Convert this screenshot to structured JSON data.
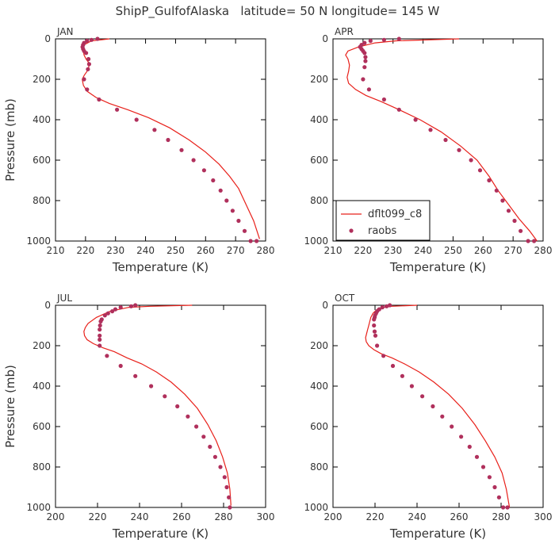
{
  "title": "ShipP_GulfofAlaska   latitude= 50 N longitude= 145 W",
  "colors": {
    "model": "#e8201a",
    "obs": "#b0305c"
  },
  "legend": {
    "model_label": "dflt099_c8",
    "obs_label": "raobs",
    "panel": "APR"
  },
  "chart_data": [
    {
      "type": "line",
      "panel": "JAN",
      "title": "JAN",
      "xlabel": "Temperature (K)",
      "ylabel": "Pressure (mb)",
      "xlim": [
        210,
        280
      ],
      "ylim": [
        1000,
        0
      ],
      "xticks": [
        210,
        220,
        230,
        240,
        250,
        260,
        270,
        280
      ],
      "yticks": [
        0,
        200,
        400,
        600,
        800,
        1000
      ],
      "series": [
        {
          "name": "dflt099_c8",
          "kind": "line",
          "x": [
            228.0,
            222.0,
            219.5,
            219.2,
            219.5,
            220.2,
            221.2,
            221.0,
            219.6,
            218.9,
            219.3,
            220.6,
            223.5,
            228.0,
            234.0,
            241.0,
            248.0,
            254.5,
            260.0,
            264.5,
            268.0,
            271.0,
            273.5,
            276.0,
            278.0
          ],
          "y": [
            0,
            10,
            30,
            50,
            80,
            100,
            120,
            150,
            180,
            200,
            230,
            260,
            290,
            320,
            350,
            390,
            440,
            500,
            560,
            620,
            680,
            740,
            820,
            900,
            990
          ]
        },
        {
          "name": "raobs",
          "kind": "scatter",
          "x": [
            224.0,
            222.0,
            220.5,
            219.5,
            219.2,
            219.0,
            219.2,
            219.5,
            220.2,
            221.0,
            221.2,
            220.8,
            219.5,
            220.5,
            224.5,
            230.5,
            237.0,
            243.0,
            247.5,
            252.0,
            256.0,
            259.5,
            262.5,
            265.0,
            267.0,
            269.0,
            271.0,
            273.0,
            275.0,
            277.0
          ],
          "y": [
            0,
            5,
            10,
            20,
            30,
            40,
            50,
            60,
            70,
            100,
            125,
            150,
            200,
            250,
            300,
            350,
            400,
            450,
            500,
            550,
            600,
            650,
            700,
            750,
            800,
            850,
            900,
            950,
            1000,
            1000
          ]
        }
      ]
    },
    {
      "type": "line",
      "panel": "APR",
      "title": "APR",
      "xlabel": "Temperature (K)",
      "ylabel": "",
      "xlim": [
        210,
        280
      ],
      "ylim": [
        1000,
        0
      ],
      "xticks": [
        210,
        220,
        230,
        240,
        250,
        260,
        270,
        280
      ],
      "yticks": [
        0,
        200,
        400,
        600,
        800,
        1000
      ],
      "series": [
        {
          "name": "dflt099_c8",
          "kind": "line",
          "x": [
            252.0,
            231.0,
            224.0,
            218.5,
            215.0,
            214.2,
            215.0,
            215.5,
            215.2,
            214.7,
            215.2,
            217.5,
            221.0,
            226.0,
            232.0,
            239.0,
            246.0,
            252.5,
            258.0,
            262.0,
            265.0,
            268.5,
            272.0,
            275.5,
            278.0
          ],
          "y": [
            0,
            10,
            20,
            40,
            60,
            80,
            100,
            130,
            160,
            190,
            220,
            250,
            280,
            310,
            350,
            400,
            460,
            530,
            600,
            680,
            750,
            820,
            890,
            950,
            1000
          ]
        },
        {
          "name": "raobs",
          "kind": "scatter",
          "x": [
            232.0,
            227.0,
            222.5,
            220.5,
            219.5,
            219.0,
            219.5,
            220.0,
            220.5,
            220.8,
            220.8,
            220.5,
            220.0,
            222.0,
            227.0,
            232.0,
            237.5,
            242.5,
            247.5,
            252.0,
            256.0,
            259.0,
            262.0,
            264.5,
            266.5,
            268.5,
            270.5,
            272.5,
            275.0,
            277.0
          ],
          "y": [
            0,
            5,
            10,
            20,
            30,
            40,
            50,
            60,
            70,
            90,
            110,
            140,
            200,
            250,
            300,
            350,
            400,
            450,
            500,
            550,
            600,
            650,
            700,
            750,
            800,
            850,
            900,
            950,
            1000,
            1000
          ]
        }
      ]
    },
    {
      "type": "line",
      "panel": "JUL",
      "title": "JUL",
      "xlabel": "Temperature (K)",
      "ylabel": "Pressure (mb)",
      "xlim": [
        200,
        300
      ],
      "ylim": [
        1000,
        0
      ],
      "xticks": [
        200,
        220,
        240,
        260,
        280,
        300
      ],
      "yticks": [
        0,
        200,
        400,
        600,
        800,
        1000
      ],
      "series": [
        {
          "name": "dflt099_c8",
          "kind": "line",
          "x": [
            265.0,
            245.0,
            235.0,
            226.0,
            219.5,
            215.5,
            214.2,
            213.5,
            213.8,
            215.0,
            218.0,
            222.5,
            228.0,
            234.0,
            241.0,
            248.0,
            255.0,
            261.5,
            267.5,
            272.5,
            276.5,
            279.5,
            281.8,
            283.0,
            283.5
          ],
          "y": [
            0,
            5,
            10,
            30,
            60,
            90,
            110,
            130,
            150,
            170,
            190,
            210,
            230,
            260,
            290,
            330,
            380,
            440,
            510,
            590,
            670,
            750,
            830,
            910,
            990
          ]
        },
        {
          "name": "raobs",
          "kind": "scatter",
          "x": [
            238.0,
            236.0,
            231.0,
            228.5,
            227.0,
            225.0,
            223.5,
            222.0,
            221.5,
            221.2,
            221.0,
            221.0,
            221.0,
            221.0,
            224.5,
            231.0,
            238.0,
            245.5,
            252.0,
            258.0,
            263.0,
            267.0,
            270.5,
            273.5,
            276.0,
            278.5,
            280.5,
            281.5,
            282.5,
            283.0
          ],
          "y": [
            0,
            5,
            10,
            20,
            30,
            40,
            50,
            70,
            80,
            100,
            120,
            150,
            170,
            200,
            250,
            300,
            350,
            400,
            450,
            500,
            550,
            600,
            650,
            700,
            750,
            800,
            850,
            900,
            950,
            1000
          ]
        }
      ]
    },
    {
      "type": "line",
      "panel": "OCT",
      "title": "OCT",
      "xlabel": "Temperature (K)",
      "ylabel": "",
      "xlim": [
        200,
        300
      ],
      "ylim": [
        1000,
        0
      ],
      "xticks": [
        200,
        220,
        240,
        260,
        280,
        300
      ],
      "yticks": [
        0,
        200,
        400,
        600,
        800,
        1000
      ],
      "series": [
        {
          "name": "dflt099_c8",
          "kind": "line",
          "x": [
            240.0,
            228.0,
            224.0,
            221.0,
            219.0,
            218.0,
            217.5,
            217.0,
            216.5,
            216.0,
            215.5,
            215.8,
            217.0,
            219.5,
            223.0,
            228.0,
            234.0,
            241.0,
            248.0,
            255.0,
            261.5,
            267.5,
            272.5,
            277.0,
            280.5,
            282.5,
            284.0
          ],
          "y": [
            0,
            5,
            10,
            20,
            40,
            60,
            80,
            100,
            120,
            140,
            160,
            180,
            200,
            220,
            240,
            260,
            290,
            330,
            380,
            440,
            510,
            590,
            670,
            750,
            830,
            910,
            1000
          ]
        },
        {
          "name": "raobs",
          "kind": "scatter",
          "x": [
            227.0,
            225.5,
            223.5,
            222.0,
            221.0,
            220.5,
            220.0,
            219.8,
            219.5,
            219.5,
            219.8,
            220.2,
            221.0,
            224.0,
            228.5,
            233.0,
            237.5,
            242.5,
            247.5,
            252.0,
            256.5,
            261.0,
            265.0,
            268.5,
            271.5,
            274.5,
            277.0,
            279.0,
            281.0,
            283.0
          ],
          "y": [
            0,
            5,
            10,
            20,
            30,
            40,
            50,
            60,
            70,
            100,
            130,
            150,
            200,
            250,
            300,
            350,
            400,
            450,
            500,
            550,
            600,
            650,
            700,
            750,
            800,
            850,
            900,
            950,
            1000,
            1000
          ]
        }
      ]
    }
  ]
}
